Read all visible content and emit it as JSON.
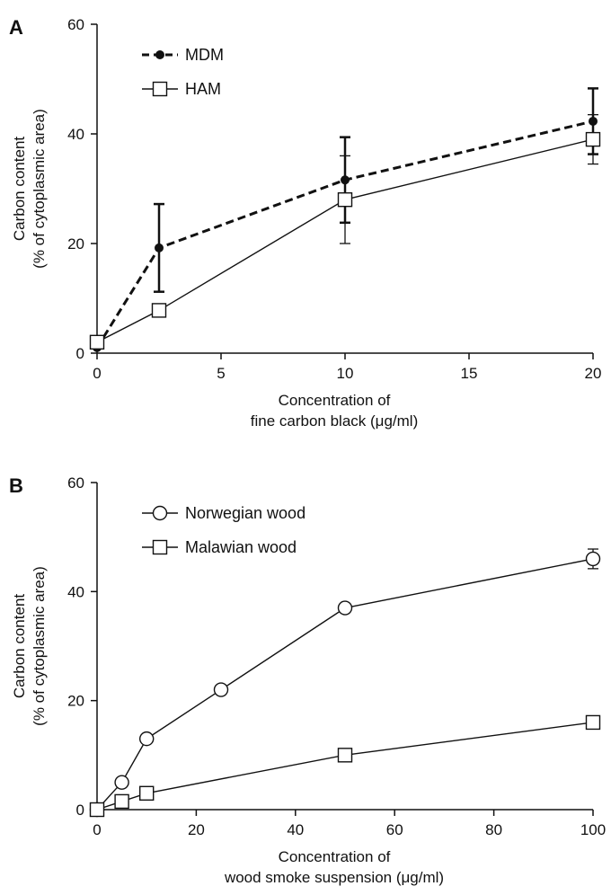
{
  "chart_data": [
    {
      "panel_label": "A",
      "type": "line",
      "xlabel": [
        "Concentration of",
        "fine carbon black (μg/ml)"
      ],
      "ylabel": [
        "Carbon content",
        "(% of cytoplasmic area)"
      ],
      "xlim": [
        0,
        20
      ],
      "ylim": [
        0,
        60
      ],
      "x_ticks": [
        0,
        5,
        10,
        15,
        20
      ],
      "y_ticks": [
        0,
        20,
        40,
        60
      ],
      "grid": false,
      "legend_position": "top-left",
      "series": [
        {
          "name": "MDM",
          "marker": "filled-circle",
          "line_style": "dashed",
          "x": [
            0,
            2.5,
            10,
            20
          ],
          "y": [
            1,
            19.2,
            31.6,
            42.3
          ],
          "error": [
            0,
            8,
            7.8,
            6
          ]
        },
        {
          "name": "HAM",
          "marker": "open-square",
          "line_style": "solid",
          "x": [
            0,
            2.5,
            10,
            20
          ],
          "y": [
            2,
            7.8,
            28,
            39
          ],
          "error": [
            0,
            0,
            8,
            4.5
          ]
        }
      ]
    },
    {
      "panel_label": "B",
      "type": "line",
      "xlabel": [
        "Concentration of",
        "wood smoke suspension (μg/ml)"
      ],
      "ylabel": [
        "Carbon content",
        "(% of cytoplasmic area)"
      ],
      "xlim": [
        0,
        100
      ],
      "ylim": [
        0,
        60
      ],
      "x_ticks": [
        0,
        20,
        40,
        60,
        80,
        100
      ],
      "y_ticks": [
        0,
        20,
        40,
        60
      ],
      "grid": false,
      "legend_position": "top-left",
      "series": [
        {
          "name": "Norwegian wood",
          "marker": "open-circle",
          "line_style": "solid",
          "x": [
            0,
            5,
            10,
            25,
            50,
            100
          ],
          "y": [
            0,
            5,
            13,
            22,
            37,
            46
          ],
          "error": [
            0,
            0,
            0,
            0,
            0,
            1.8
          ]
        },
        {
          "name": "Malawian wood",
          "marker": "open-square",
          "line_style": "solid",
          "x": [
            0,
            5,
            10,
            50,
            100
          ],
          "y": [
            0,
            1.5,
            3,
            10,
            16
          ],
          "error": [
            0,
            0,
            0,
            0,
            0
          ]
        }
      ]
    }
  ]
}
